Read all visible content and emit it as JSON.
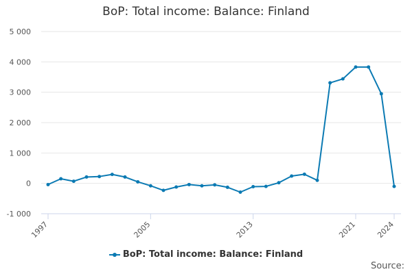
{
  "chart_data": {
    "type": "line",
    "title": "BoP: Total income: Balance: Finland",
    "xlabel": "",
    "ylabel": "",
    "x": [
      1997,
      1998,
      1999,
      2000,
      2001,
      2002,
      2003,
      2004,
      2005,
      2006,
      2007,
      2008,
      2009,
      2010,
      2011,
      2012,
      2013,
      2014,
      2015,
      2016,
      2017,
      2018,
      2019,
      2020,
      2021,
      2022,
      2023,
      2024
    ],
    "xticks": [
      1997,
      2005,
      2013,
      2021,
      2024
    ],
    "xlim": [
      1997,
      2024
    ],
    "yticks": [
      -1000,
      0,
      1000,
      2000,
      3000,
      4000,
      5000
    ],
    "ytick_labels": [
      "-1 000",
      "0",
      "1 000",
      "2 000",
      "3 000",
      "4 000",
      "5 000"
    ],
    "ylim": [
      -1000,
      5000
    ],
    "grid": "horizontal",
    "legend_position": "bottom",
    "series": [
      {
        "name": "BoP: Total income: Balance: Finland",
        "color": "#0b7ab3",
        "values": [
          -40,
          150,
          70,
          210,
          225,
          295,
          210,
          50,
          -80,
          -230,
          -120,
          -40,
          -80,
          -50,
          -130,
          -290,
          -110,
          -100,
          20,
          240,
          300,
          100,
          3310,
          3440,
          3830,
          3830,
          2950,
          -100
        ]
      }
    ]
  },
  "source_label": "Source:"
}
